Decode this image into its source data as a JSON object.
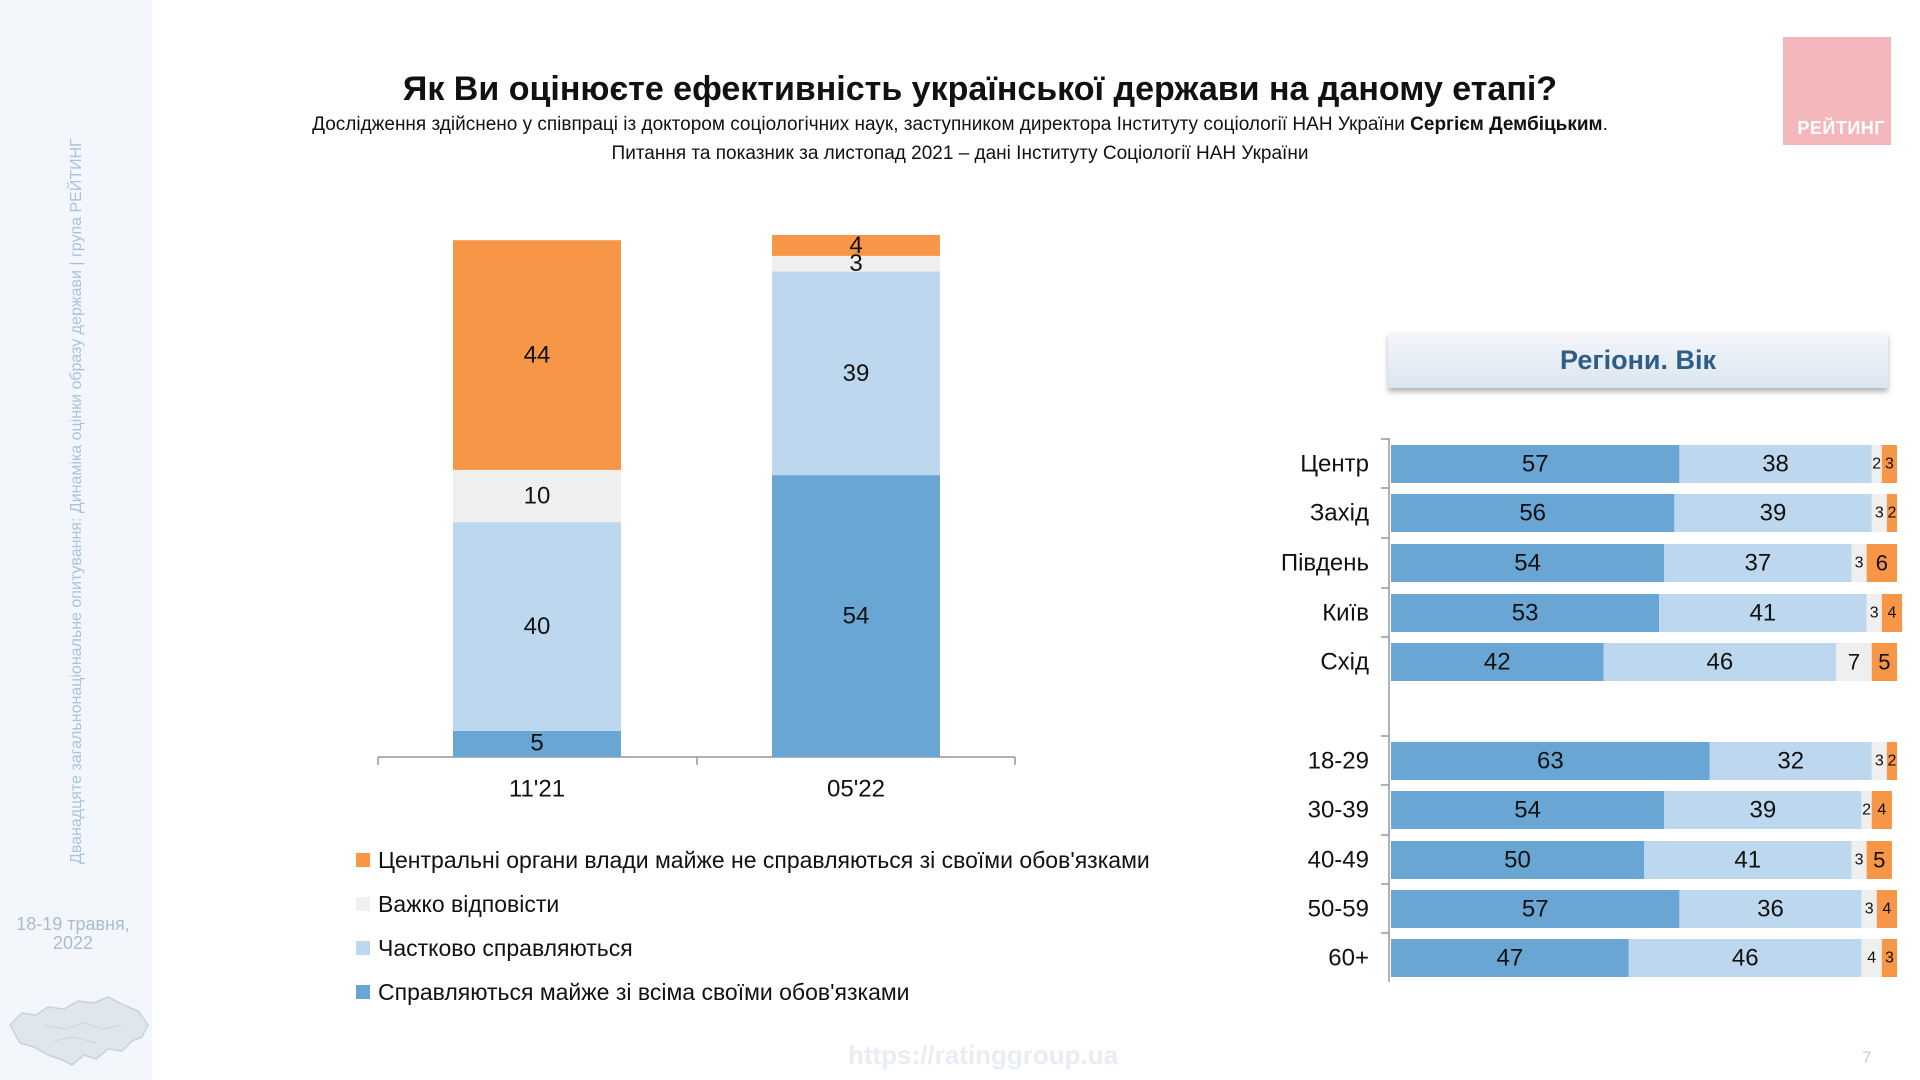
{
  "sidebar": {
    "vertical_text": "Дванадцяте загальнонаціональне опитування: Динаміка оцінки образу держави | група РЕЙТИНГ",
    "date_line1": "18-19 травня,",
    "date_line2": "2022"
  },
  "header": {
    "title": "Як Ви оцінюєте ефективність української держави на даному етапі?",
    "subtitle_regular": "Дослідження здійснено у співпраці із доктором соціологічних наук, заступником директора Інституту соціології НАН України ",
    "subtitle_bold": "Сергієм Дембіцьким",
    "subtitle_end": ".",
    "subtitle2": "Питання та показник за листопад 2021 – дані Інституту Соціології НАН України"
  },
  "logo": {
    "text": "РЕЙТИНГ"
  },
  "colors": {
    "copes_fully": "#6aa6d4",
    "copes_partly": "#bdd7ee",
    "hard_to_say": "#efefef",
    "do_not_cope": "#f79646",
    "logo_bg": "#f4b7bc"
  },
  "legend": [
    {
      "label": "Центральні органи влади майже не справляються зі своїми обов'язками",
      "color": "#f79646"
    },
    {
      "label": "Важко відповісти",
      "color": "#efefef"
    },
    {
      "label": "Частково справляються",
      "color": "#bdd7ee"
    },
    {
      "label": "Справляються майже зі всіма своїми обов'язками",
      "color": "#6aa6d4"
    }
  ],
  "panel": {
    "title": "Регіони. Вік"
  },
  "footer": {
    "url": "https://ratinggroup.ua",
    "page": "7"
  },
  "chart_data": [
    {
      "type": "bar",
      "stacked": true,
      "orientation": "vertical",
      "categories": [
        "11'21",
        "05'22"
      ],
      "series": [
        {
          "name": "Справляються майже зі всіма своїми обов'язками",
          "values": [
            5,
            54
          ]
        },
        {
          "name": "Частково справляються",
          "values": [
            40,
            39
          ]
        },
        {
          "name": "Важко відповісти",
          "values": [
            10,
            3
          ]
        },
        {
          "name": "Центральні органи влади майже не справляються зі своїми обов'язками",
          "values": [
            44,
            4
          ]
        }
      ],
      "ylim": [
        0,
        100
      ]
    },
    {
      "type": "bar",
      "stacked": true,
      "orientation": "horizontal",
      "title": "Регіони. Вік",
      "categories": [
        "Центр",
        "Захід",
        "Південь",
        "Київ",
        "Схід",
        "18-29",
        "30-39",
        "40-49",
        "50-59",
        "60+"
      ],
      "series": [
        {
          "name": "Справляються майже зі всіма своїми обов'язками",
          "values": [
            57,
            56,
            54,
            53,
            42,
            63,
            54,
            50,
            57,
            47
          ]
        },
        {
          "name": "Частково справляються",
          "values": [
            38,
            39,
            37,
            41,
            46,
            32,
            39,
            41,
            36,
            46
          ]
        },
        {
          "name": "Важко відповісти",
          "values": [
            2,
            3,
            3,
            3,
            7,
            3,
            2,
            3,
            3,
            4
          ]
        },
        {
          "name": "Центральні органи влади майже не справляються зі своїми обов'язками",
          "values": [
            3,
            2,
            6,
            4,
            5,
            2,
            4,
            5,
            4,
            3
          ]
        }
      ],
      "xlim": [
        0,
        100
      ]
    }
  ]
}
